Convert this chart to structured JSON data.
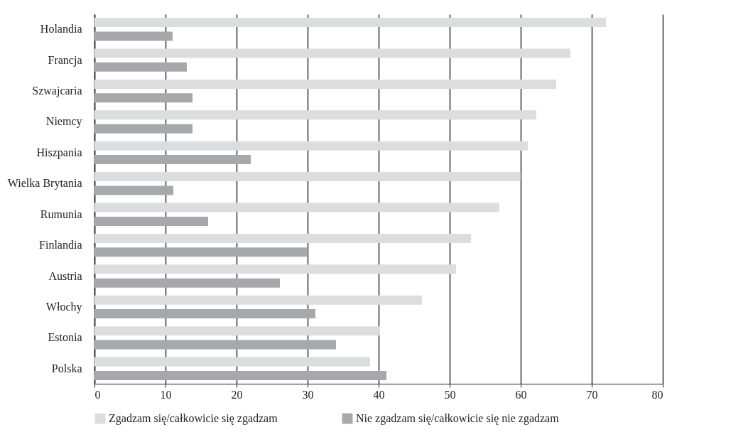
{
  "chart_data": {
    "type": "bar",
    "orientation": "horizontal",
    "categories": [
      "Holandia",
      "Francja",
      "Szwajcaria",
      "Niemcy",
      "Hiszpania",
      "Wielka Brytania",
      "Rumunia",
      "Finlandia",
      "Austria",
      "Włochy",
      "Estonia",
      "Polska"
    ],
    "series": [
      {
        "name": "Zgadzam się/całkowicie się zgadzam",
        "color": "#dcdddf",
        "values": [
          72.0,
          67.0,
          65.0,
          62.2,
          61.0,
          60.0,
          57.0,
          53.0,
          50.9,
          46.1,
          40.2,
          38.8
        ]
      },
      {
        "name": "Nie zgadzam się/całkowicie się nie zgadzam",
        "color": "#a7a8ab",
        "values": [
          11.0,
          13.0,
          13.8,
          13.8,
          22.0,
          11.1,
          16.0,
          29.9,
          26.1,
          31.1,
          34.0,
          41.1
        ]
      }
    ],
    "xlim": [
      0,
      80
    ],
    "xticks": [
      0,
      10,
      20,
      30,
      40,
      50,
      60,
      70,
      80
    ],
    "grid": "x",
    "legend": "bottom"
  }
}
